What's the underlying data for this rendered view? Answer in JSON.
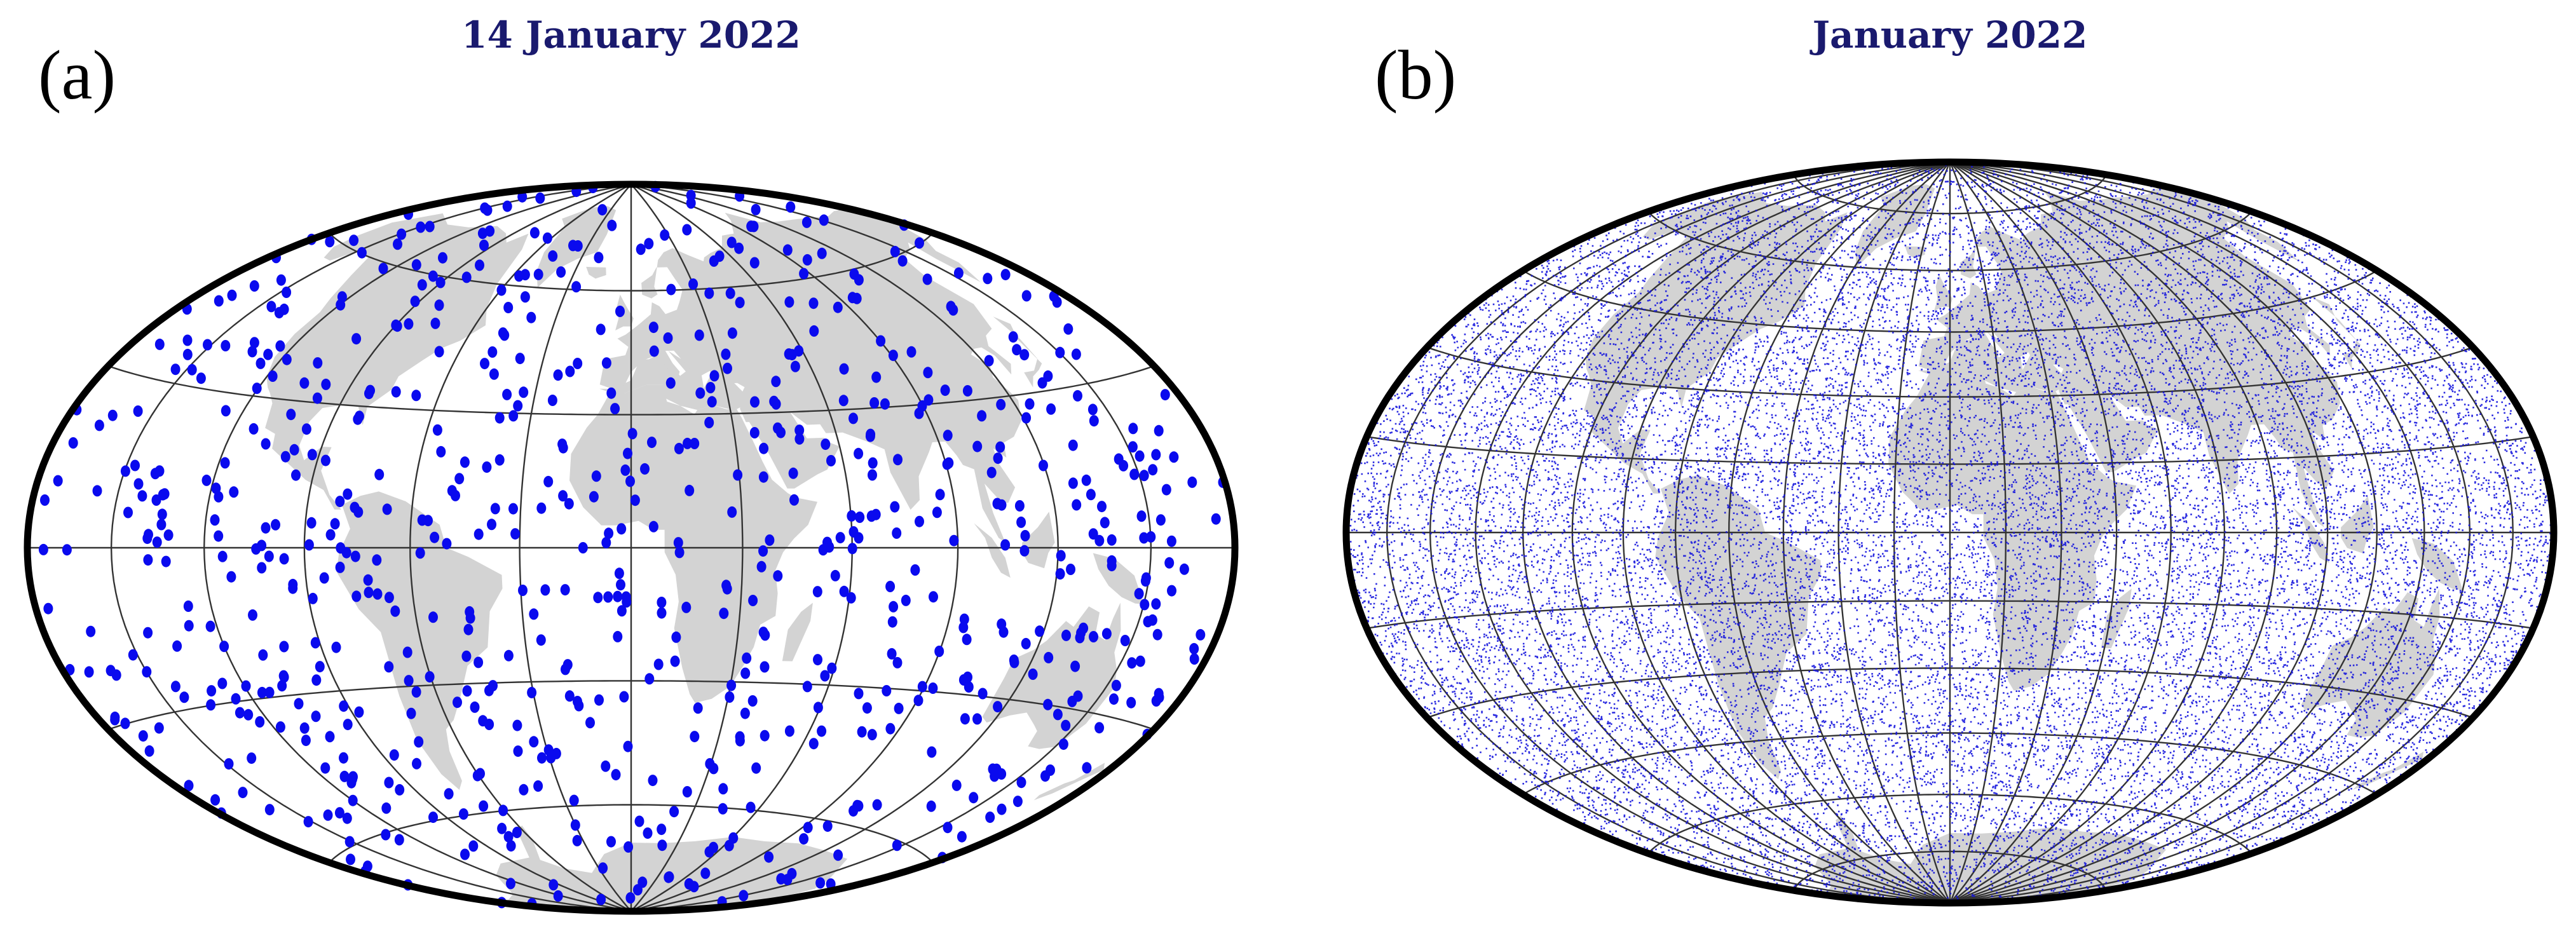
{
  "figure": {
    "panels": [
      {
        "id": "a",
        "letter": "(a)",
        "title": "14 January 2022",
        "projection": "hammer",
        "point_style": "large dots",
        "point_count": 760,
        "point_color": "#0a0aee",
        "land_color": "#d3d3d3",
        "graticule_lon_step_deg": 30,
        "graticule_lat_step_deg": 30
      },
      {
        "id": "b",
        "letter": "(b)",
        "title": "January 2022",
        "projection": "hammer",
        "point_style": "small dots",
        "point_count": 24000,
        "point_color": "#1515dd",
        "land_color": "#d3d3d3",
        "graticule_lon_step_deg": 15,
        "graticule_lat_step_deg": 15
      }
    ]
  }
}
